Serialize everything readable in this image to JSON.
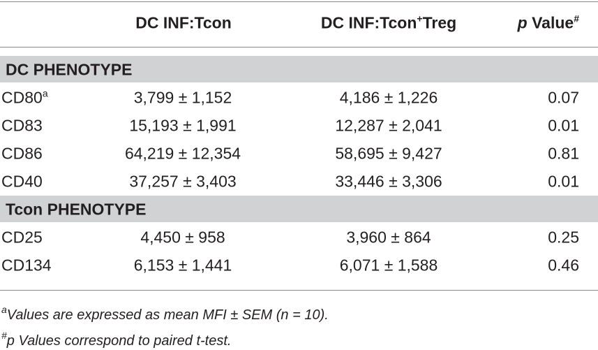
{
  "header": {
    "columns": [
      {
        "text": "DC INF:Tcon"
      },
      {
        "text": "DC INF:Tcon",
        "sup": "+",
        "after": "Treg"
      },
      {
        "italic": "p",
        "text": " Value",
        "sup": "#"
      }
    ]
  },
  "sections": [
    {
      "title": "DC PHENOTYPE",
      "rows": [
        {
          "label": "CD80",
          "sup": "a",
          "cells": [
            "3,799 ± 1,152",
            "4,186 ± 1,226",
            "0.07"
          ]
        },
        {
          "label": "CD83",
          "cells": [
            "15,193 ± 1,991",
            "12,287 ± 2,041",
            "0.01"
          ]
        },
        {
          "label": "CD86",
          "cells": [
            "64,219 ± 12,354",
            "58,695 ± 9,427",
            "0.81"
          ]
        },
        {
          "label": "CD40",
          "cells": [
            "37,257 ± 3,403",
            "33,446 ± 3,306",
            "0.01"
          ]
        }
      ]
    },
    {
      "title": "Tcon PHENOTYPE",
      "rows": [
        {
          "label": "CD25",
          "cells": [
            "4,450 ± 958",
            "3,960 ± 864",
            "0.25"
          ]
        },
        {
          "label": "CD134",
          "cells": [
            "6,153 ± 1,441",
            "6,071 ± 1,588",
            "0.46"
          ]
        }
      ]
    }
  ],
  "footnotes": [
    {
      "mark": "a",
      "text": "Values are expressed as mean MFI ± SEM (n = 10)."
    },
    {
      "mark": "#",
      "text": "p Values correspond to paired t-test."
    }
  ]
}
